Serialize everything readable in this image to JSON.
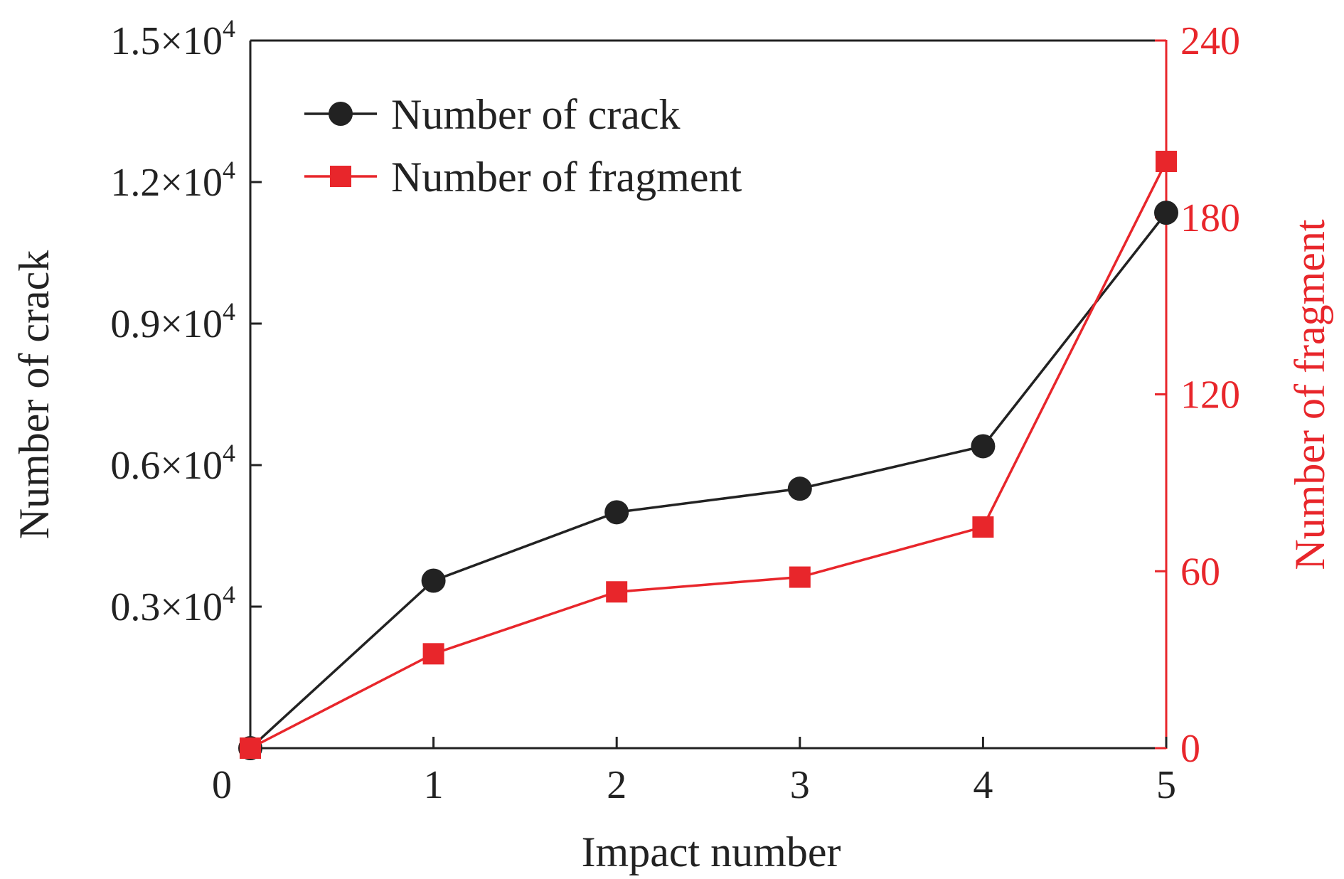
{
  "chart_data": {
    "type": "line",
    "title": "",
    "xlabel": "Impact number",
    "ylabel": "Number of crack",
    "y2label": "Number of fragment",
    "x": [
      0,
      1,
      2,
      3,
      4,
      5
    ],
    "xlim": [
      0,
      5
    ],
    "ylim": [
      0,
      15000
    ],
    "y2lim": [
      0,
      240
    ],
    "x_ticks": [
      "0",
      "1",
      "2",
      "3",
      "4",
      "5"
    ],
    "y_ticks": [
      {
        "value": 3000,
        "mantissa": "0.3×10",
        "exp": "4"
      },
      {
        "value": 6000,
        "mantissa": "0.6×10",
        "exp": "4"
      },
      {
        "value": 9000,
        "mantissa": "0.9×10",
        "exp": "4"
      },
      {
        "value": 12000,
        "mantissa": "1.2×10",
        "exp": "4"
      },
      {
        "value": 15000,
        "mantissa": "1.5×10",
        "exp": "4"
      }
    ],
    "y2_ticks": [
      "0",
      "60",
      "120",
      "180",
      "240"
    ],
    "grid": false,
    "legend_position": "top-left",
    "series": [
      {
        "name": "Number of crack",
        "axis": "left",
        "marker": "circle",
        "color": "#222222",
        "values": [
          0,
          3550,
          5000,
          5500,
          6400,
          11350
        ]
      },
      {
        "name": "Number of fragment",
        "axis": "right",
        "marker": "square",
        "color": "#e8262b",
        "values": [
          0,
          32,
          53,
          58,
          75,
          199
        ]
      }
    ]
  }
}
